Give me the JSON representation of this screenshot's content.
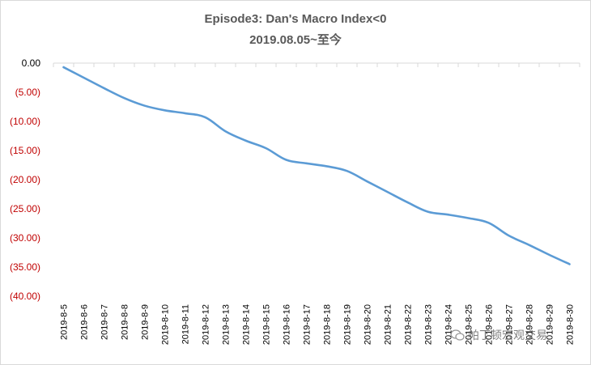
{
  "chart_data": {
    "type": "line",
    "title": "Episode3: Dan's Macro Index<0",
    "subtitle": "2019.08.05~至今",
    "xlabel": "",
    "ylabel": "",
    "ylim": [
      -40,
      0
    ],
    "yticks": [
      "0.00",
      "(5.00)",
      "(10.00)",
      "(15.00)",
      "(20.00)",
      "(25.00)",
      "(30.00)",
      "(35.00)",
      "(40.00)"
    ],
    "ytick_colors": {
      "zero": "#000000",
      "negative": "#c00000"
    },
    "categories": [
      "2019-8-5",
      "2019-8-6",
      "2019-8-7",
      "2019-8-8",
      "2019-8-9",
      "2019-8-10",
      "2019-8-11",
      "2019-8-12",
      "2019-8-13",
      "2019-8-14",
      "2019-8-15",
      "2019-8-16",
      "2019-8-17",
      "2019-8-18",
      "2019-8-19",
      "2019-8-20",
      "2019-8-21",
      "2019-8-22",
      "2019-8-23",
      "2019-8-24",
      "2019-8-25",
      "2019-8-26",
      "2019-8-27",
      "2019-8-28",
      "2019-8-29",
      "2019-8-30"
    ],
    "series": [
      {
        "values": [
          -0.7,
          -2.5,
          -4.3,
          -6.0,
          -7.3,
          -8.1,
          -8.6,
          -9.3,
          -11.7,
          -13.3,
          -14.6,
          -16.6,
          -17.2,
          -17.7,
          -18.5,
          -20.3,
          -22.1,
          -23.9,
          -25.5,
          -26.0,
          -26.6,
          -27.4,
          -29.6,
          -31.2,
          -32.9,
          -34.5
        ],
        "color": "#5b9bd5"
      }
    ],
    "grid": false,
    "legend": "none"
  },
  "watermark": {
    "text": "帕丁顿宏观交易"
  }
}
